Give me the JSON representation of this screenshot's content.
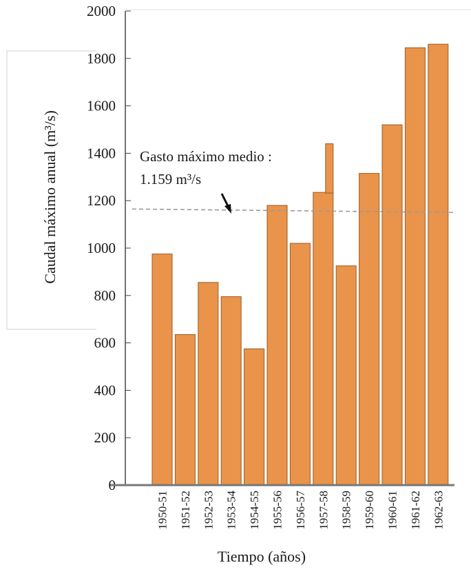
{
  "chart_data": {
    "type": "bar",
    "categories": [
      "1950-51",
      "1951-52",
      "1952-53",
      "1953-54",
      "1954-55",
      "1955-56",
      "1956-57",
      "1957-58",
      "1958-59",
      "1959-60",
      "1960-61",
      "1961-62",
      "1962-63"
    ],
    "values": [
      975,
      635,
      855,
      795,
      575,
      1180,
      1020,
      1235,
      925,
      1315,
      1520,
      1845,
      1860
    ],
    "extra_bar_segment": {
      "category": "1957-58",
      "value": 1440
    },
    "xlabel": "Tiempo (años)",
    "ylabel": "Caudal máximo anual (m³/s)",
    "ylim": [
      0,
      2000
    ],
    "yticks": [
      "0",
      "200",
      "400",
      "600",
      "800",
      "1000",
      "1200",
      "1400",
      "1600",
      "1800",
      "2000"
    ],
    "reference_line": {
      "value": 1159,
      "style": "dashed",
      "color": "#9a9a9a"
    },
    "annotation": {
      "line1": "Gasto máximo medio :",
      "line2": "1.159 m³/s"
    },
    "bar_color": "#e9944a",
    "grid": false
  }
}
